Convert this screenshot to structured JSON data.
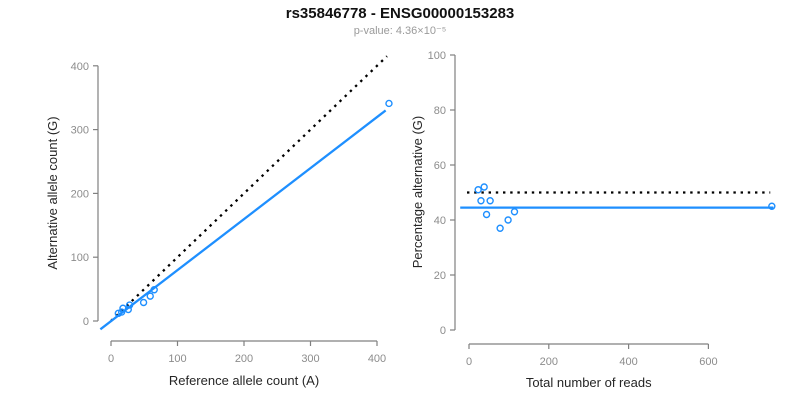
{
  "header": {
    "title": "rs35846778 - ENSG00000153283",
    "subtitle": "p-value: 4.36×10⁻⁵"
  },
  "colors": {
    "accent_blue": "#1E8FFF",
    "identity_black": "#000000",
    "axis_gray": "#808080",
    "tick_label_gray": "#8c8c8c",
    "axis_title_color": "#262626",
    "subtitle_gray": "#9a9a9a"
  },
  "chart_data": [
    {
      "name": "allele-counts-scatter",
      "type": "scatter",
      "title": "",
      "xlabel": "Reference allele count (A)",
      "ylabel": "Alternative allele count (G)",
      "xlim": [
        0,
        400
      ],
      "ylim": [
        0,
        400
      ],
      "xticks": [
        0,
        100,
        200,
        300,
        400
      ],
      "yticks": [
        0,
        100,
        200,
        300,
        400
      ],
      "grid": false,
      "legend": null,
      "points": [
        [
          11,
          12
        ],
        [
          18,
          20
        ],
        [
          16,
          14
        ],
        [
          28,
          25
        ],
        [
          26,
          18
        ],
        [
          49,
          29
        ],
        [
          59,
          39
        ],
        [
          65,
          49
        ],
        [
          418,
          341
        ]
      ],
      "lines": [
        {
          "name": "identity-line",
          "style": "dotted",
          "color": "#000000",
          "from": [
            0,
            0
          ],
          "to": [
            415,
            415
          ]
        },
        {
          "name": "regression-line",
          "style": "solid",
          "color": "#1E8FFF",
          "from": [
            -16,
            -13
          ],
          "to": [
            413,
            330
          ]
        }
      ]
    },
    {
      "name": "percentage-scatter",
      "type": "scatter",
      "title": "",
      "xlabel": "Total number of reads",
      "ylabel": "Percentage alternative (G)",
      "xlim": [
        0,
        600
      ],
      "ylim": [
        0,
        100
      ],
      "xticks": [
        0,
        200,
        400,
        600
      ],
      "yticks": [
        0,
        20,
        40,
        60,
        80,
        100
      ],
      "grid": false,
      "legend": null,
      "points": [
        [
          23,
          51
        ],
        [
          38,
          52
        ],
        [
          30,
          47
        ],
        [
          53,
          47
        ],
        [
          44,
          42
        ],
        [
          78,
          37
        ],
        [
          98,
          40
        ],
        [
          114,
          43
        ],
        [
          759,
          45
        ]
      ],
      "lines": [
        {
          "name": "fifty-percent-line",
          "style": "dotted",
          "color": "#000000",
          "from": [
            -5,
            50
          ],
          "to": [
            755,
            50
          ]
        },
        {
          "name": "mean-percentage-line",
          "style": "solid",
          "color": "#1E8FFF",
          "from": [
            -22,
            44.5
          ],
          "to": [
            763,
            44.5
          ]
        }
      ]
    }
  ]
}
